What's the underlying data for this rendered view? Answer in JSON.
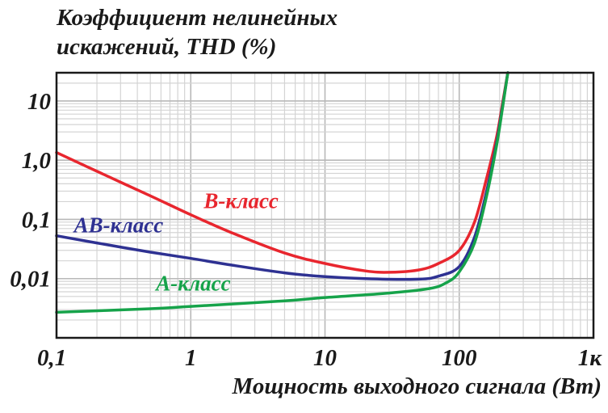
{
  "chart_data": {
    "type": "line",
    "title": "",
    "ylabel": [
      "Коэффициент нелинейных",
      "искажений, THD (%)"
    ],
    "xlabel": "Мощность выходного сигнала (Вт)",
    "xscale": "log",
    "yscale": "log",
    "xlim": [
      0.1,
      1000
    ],
    "ylim": [
      0.001,
      30
    ],
    "grid": true,
    "x_ticks": [
      {
        "value": 0.1,
        "label": "0,1"
      },
      {
        "value": 1,
        "label": "1"
      },
      {
        "value": 10,
        "label": "10"
      },
      {
        "value": 100,
        "label": "100"
      },
      {
        "value": 1000,
        "label": "1к"
      }
    ],
    "y_ticks": [
      {
        "value": 0.01,
        "label": "0,01"
      },
      {
        "value": 0.1,
        "label": "0,1"
      },
      {
        "value": 1,
        "label": "1,0"
      },
      {
        "value": 10,
        "label": "10"
      }
    ],
    "series": [
      {
        "name": "В-класс",
        "color": "#e8262e",
        "label_at": [
          1.25,
          0.155
        ],
        "points": [
          [
            0.1,
            1.35
          ],
          [
            0.2,
            0.65
          ],
          [
            0.5,
            0.25
          ],
          [
            1,
            0.12
          ],
          [
            2,
            0.06
          ],
          [
            5,
            0.027
          ],
          [
            10,
            0.018
          ],
          [
            20,
            0.0135
          ],
          [
            30,
            0.0128
          ],
          [
            50,
            0.014
          ],
          [
            70,
            0.018
          ],
          [
            100,
            0.03
          ],
          [
            130,
            0.09
          ],
          [
            160,
            0.5
          ],
          [
            190,
            2.5
          ],
          [
            210,
            9
          ],
          [
            230,
            30
          ]
        ]
      },
      {
        "name": "АВ-класс",
        "color": "#2e3192",
        "label_at": [
          0.135,
          0.06
        ],
        "points": [
          [
            0.1,
            0.053
          ],
          [
            0.2,
            0.04
          ],
          [
            0.5,
            0.028
          ],
          [
            1,
            0.022
          ],
          [
            2,
            0.017
          ],
          [
            5,
            0.0125
          ],
          [
            10,
            0.0108
          ],
          [
            20,
            0.01
          ],
          [
            50,
            0.0098
          ],
          [
            70,
            0.011
          ],
          [
            100,
            0.016
          ],
          [
            130,
            0.05
          ],
          [
            160,
            0.3
          ],
          [
            190,
            2
          ],
          [
            210,
            8
          ],
          [
            230,
            30
          ]
        ]
      },
      {
        "name": "А-класс",
        "color": "#16a34a",
        "label_at": [
          0.55,
          0.0063
        ],
        "points": [
          [
            0.1,
            0.0027
          ],
          [
            0.5,
            0.0031
          ],
          [
            1,
            0.0034
          ],
          [
            5,
            0.0042
          ],
          [
            10,
            0.0048
          ],
          [
            30,
            0.0057
          ],
          [
            60,
            0.0068
          ],
          [
            80,
            0.0085
          ],
          [
            100,
            0.013
          ],
          [
            130,
            0.04
          ],
          [
            160,
            0.25
          ],
          [
            190,
            1.8
          ],
          [
            210,
            7.5
          ],
          [
            230,
            30
          ]
        ]
      }
    ]
  }
}
